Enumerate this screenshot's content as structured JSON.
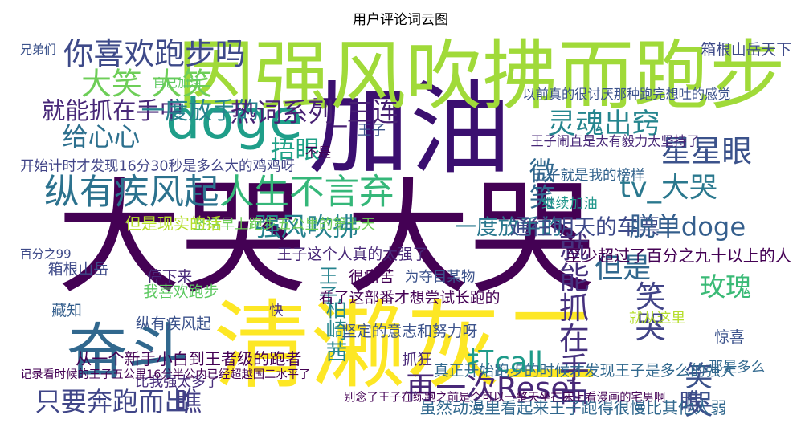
{
  "title": "用户评论词云图",
  "chart_data": {
    "type": "wordcloud",
    "title": "用户评论词云图",
    "words": [
      {
        "text": "大哭 大哭",
        "weight": 1.0,
        "color": "#440154",
        "x": 0.395,
        "y": 0.56
      },
      {
        "text": "加油",
        "weight": 0.82,
        "color": "#3b0f70",
        "x": 0.505,
        "y": 0.265
      },
      {
        "text": "清濑灰二",
        "weight": 0.78,
        "color": "#fde725",
        "x": 0.5,
        "y": 0.84
      },
      {
        "text": "因强风吹拂而跑步",
        "weight": 0.62,
        "color": "#a0da39",
        "x": 0.6,
        "y": 0.085
      },
      {
        "text": "doge",
        "weight": 0.45,
        "color": "#1f9e89",
        "x": 0.275,
        "y": 0.23
      },
      {
        "text": "奋斗",
        "weight": 0.5,
        "color": "#31688e",
        "x": 0.135,
        "y": 0.85
      },
      {
        "text": "纵有疾风起",
        "weight": 0.28,
        "color": "#2c728e",
        "x": 0.14,
        "y": 0.42
      },
      {
        "text": "人生不言弃",
        "weight": 0.28,
        "color": "#35b779",
        "x": 0.37,
        "y": 0.42
      },
      {
        "text": "你喜欢跑步吗",
        "weight": 0.24,
        "color": "#3e4a89",
        "x": 0.17,
        "y": 0.05
      },
      {
        "text": "大笑 大笑",
        "weight": 0.24,
        "color": "#6ece58",
        "x": 0.16,
        "y": 0.13
      },
      {
        "text": "就能抓在手中",
        "weight": 0.18,
        "color": "#482878",
        "x": 0.115,
        "y": 0.2
      },
      {
        "text": "一度放手的",
        "weight": 0.18,
        "color": "#26828e",
        "x": 0.23,
        "y": 0.2
      },
      {
        "text": "热词系列_三连",
        "weight": 0.2,
        "color": "#482173",
        "x": 0.38,
        "y": 0.205
      },
      {
        "text": "给心心",
        "weight": 0.2,
        "color": "#2d708e",
        "x": 0.1,
        "y": 0.27
      },
      {
        "text": "捂眼",
        "weight": 0.19,
        "color": "#1fa187",
        "x": 0.355,
        "y": 0.305
      },
      {
        "text": "灵魂出窍",
        "weight": 0.22,
        "color": "#25858e",
        "x": 0.76,
        "y": 0.235
      },
      {
        "text": "星星眼",
        "weight": 0.24,
        "color": "#3b528b",
        "x": 0.895,
        "y": 0.31
      },
      {
        "text": "微笑",
        "weight": 0.2,
        "color": "#31688e",
        "x": 0.675,
        "y": 0.39,
        "vertical": true
      },
      {
        "text": "tv_大哭",
        "weight": 0.22,
        "color": "#2a788e",
        "x": 0.845,
        "y": 0.405
      },
      {
        "text": "强风吹拂",
        "weight": 0.2,
        "color": "#26828e",
        "x": 0.37,
        "y": 0.51
      },
      {
        "text": "一度放手的",
        "weight": 0.16,
        "color": "#2a788e",
        "x": 0.635,
        "y": 0.51
      },
      {
        "text": "通往明天的车票",
        "weight": 0.16,
        "color": "#3e4a89",
        "x": 0.735,
        "y": 0.51
      },
      {
        "text": "脱单doge",
        "weight": 0.2,
        "color": "#355f8d",
        "x": 0.87,
        "y": 0.51
      },
      {
        "text": "但是",
        "weight": 0.22,
        "color": "#31688e",
        "x": 0.785,
        "y": 0.62
      },
      {
        "text": "玫瑰",
        "weight": 0.2,
        "color": "#3aba76",
        "x": 0.92,
        "y": 0.67
      },
      {
        "text": "就能抓在手中",
        "weight": 0.24,
        "color": "#46317e",
        "x": 0.715,
        "y": 0.76,
        "vertical": true
      },
      {
        "text": "笑哭",
        "weight": 0.24,
        "color": "#414487",
        "x": 0.815,
        "y": 0.73,
        "vertical": true
      },
      {
        "text": "打call",
        "weight": 0.22,
        "color": "#1e9b8a",
        "x": 0.63,
        "y": 0.87
      },
      {
        "text": "再一次Reset",
        "weight": 0.24,
        "color": "#482878",
        "x": 0.615,
        "y": 0.94
      },
      {
        "text": "笑哭",
        "weight": 0.22,
        "color": "#3b528b",
        "x": 0.88,
        "y": 0.95,
        "vertical": true
      },
      {
        "text": "瞧",
        "weight": 0.18,
        "color": "#3e4a89",
        "x": 0.875,
        "y": 0.975
      },
      {
        "text": "只要奔跑而出",
        "weight": 0.2,
        "color": "#404688",
        "x": 0.115,
        "y": 0.975
      },
      {
        "text": "瞧",
        "weight": 0.2,
        "color": "#433e85",
        "x": 0.215,
        "y": 0.975
      },
      {
        "text": "柏崎茜",
        "weight": 0.16,
        "color": "#24868e",
        "x": 0.405,
        "y": 0.78,
        "vertical": true
      },
      {
        "text": "王子",
        "weight": 0.14,
        "color": "#25838e",
        "x": 0.395,
        "y": 0.66,
        "vertical": true
      },
      {
        "text": "至少超过了百分之九十以上的人",
        "weight": 0.11,
        "color": "#440154",
        "x": 0.885,
        "y": 0.585
      },
      {
        "text": "王子这个人真的太强了",
        "weight": 0.1,
        "color": "#482878",
        "x": 0.43,
        "y": 0.58
      },
      {
        "text": "看了这部番才想尝试长跑的",
        "weight": 0.1,
        "color": "#440154",
        "x": 0.505,
        "y": 0.695
      },
      {
        "text": "坚定的意志和努力呀",
        "weight": 0.1,
        "color": "#3b528b",
        "x": 0.505,
        "y": 0.785
      },
      {
        "text": "真正开始跑步的时候才发现王子是多么的强大",
        "weight": 0.1,
        "color": "#31688e",
        "x": 0.735,
        "y": 0.89
      },
      {
        "text": "从一个新手小白到王者级的跑者",
        "weight": 0.11,
        "color": "#440154",
        "x": 0.215,
        "y": 0.86
      },
      {
        "text": "虽然动漫里看起来王子跑得很慢比其他人弱",
        "weight": 0.11,
        "color": "#31688e",
        "x": 0.72,
        "y": 1.0
      },
      {
        "text": "开始计时才发现16分30秒是多么大的鸡鸡呀",
        "weight": 0.09,
        "color": "#414487",
        "x": 0.11,
        "y": 0.345
      },
      {
        "text": "以前真的很讨厌那种跑完想吐的感觉",
        "weight": 0.08,
        "color": "#3b528b",
        "x": 0.79,
        "y": 0.155
      },
      {
        "text": "王子就是我的榜样",
        "weight": 0.09,
        "color": "#33638d",
        "x": 0.74,
        "y": 0.37
      },
      {
        "text": "继续加油",
        "weight": 0.09,
        "color": "#1f968b",
        "x": 0.715,
        "y": 0.445
      },
      {
        "text": "坚持早上跑步五公里的第七天",
        "weight": 0.09,
        "color": "#6ece58",
        "x": 0.34,
        "y": 0.5
      },
      {
        "text": "但是现实的话",
        "weight": 0.11,
        "color": "#b5de2b",
        "x": 0.195,
        "y": 0.5
      },
      {
        "text": "箱根山岳天下",
        "weight": 0.1,
        "color": "#3e4a89",
        "x": 0.96,
        "y": 0.035
      },
      {
        "text": "箱根山岳",
        "weight": 0.1,
        "color": "#3e4a89",
        "x": 0.07,
        "y": 0.62
      },
      {
        "text": "停下来",
        "weight": 0.1,
        "color": "#482878",
        "x": 0.19,
        "y": 0.64
      },
      {
        "text": "我喜欢跑步",
        "weight": 0.1,
        "color": "#5ec962",
        "x": 0.205,
        "y": 0.68
      },
      {
        "text": "纵有疾风起",
        "weight": 0.1,
        "color": "#3b528b",
        "x": 0.195,
        "y": 0.765
      },
      {
        "text": "藏知",
        "weight": 0.1,
        "color": "#355f8d",
        "x": 0.055,
        "y": 0.73
      },
      {
        "text": "很痛苦",
        "weight": 0.1,
        "color": "#440154",
        "x": 0.455,
        "y": 0.64
      },
      {
        "text": "为夺目某物",
        "weight": 0.09,
        "color": "#3b528b",
        "x": 0.545,
        "y": 0.64
      },
      {
        "text": "抓狂",
        "weight": 0.1,
        "color": "#482878",
        "x": 0.515,
        "y": 0.86
      },
      {
        "text": "比我强太多了",
        "weight": 0.09,
        "color": "#472d7b",
        "x": 0.2,
        "y": 0.92
      },
      {
        "text": "惊喜",
        "weight": 0.1,
        "color": "#3b528b",
        "x": 0.925,
        "y": 0.8
      },
      {
        "text": "那是多么",
        "weight": 0.09,
        "color": "#31688e",
        "x": 0.935,
        "y": 0.88
      },
      {
        "text": "就从这里",
        "weight": 0.09,
        "color": "#b5de2b",
        "x": 0.83,
        "y": 0.75
      },
      {
        "text": "王子",
        "weight": 0.09,
        "color": "#3b528b",
        "x": 0.455,
        "y": 0.25
      },
      {
        "text": "不是",
        "weight": 0.08,
        "color": "#440154",
        "x": 0.385,
        "y": 0.31
      },
      {
        "text": "兄弟们",
        "weight": 0.07,
        "color": "#3b528b",
        "x": 0.015,
        "y": 0.035
      },
      {
        "text": "记录看时候的王子五公里16分半公内已经超越国二水平了",
        "weight": 0.065,
        "color": "#440154",
        "x": 0.09,
        "y": 0.9
      },
      {
        "text": "百分之99",
        "weight": 0.07,
        "color": "#3e4a89",
        "x": 0.01,
        "y": 0.58
      },
      {
        "text": "快",
        "weight": 0.09,
        "color": "#472d7b",
        "x": 0.33,
        "y": 0.73
      },
      {
        "text": "别念了王子在练跑之前是个可以一整天坐在床上看漫画的宅男啊",
        "weight": 0.065,
        "color": "#440154",
        "x": 0.63,
        "y": 0.96
      },
      {
        "text": "王子闹直是太有毅力太坚持了",
        "weight": 0.08,
        "color": "#482878",
        "x": 0.775,
        "y": 0.28
      },
      {
        "text": "自己加油",
        "weight": 0.07,
        "color": "#5ec962",
        "x": 0.2,
        "y": 0.125
      }
    ]
  }
}
